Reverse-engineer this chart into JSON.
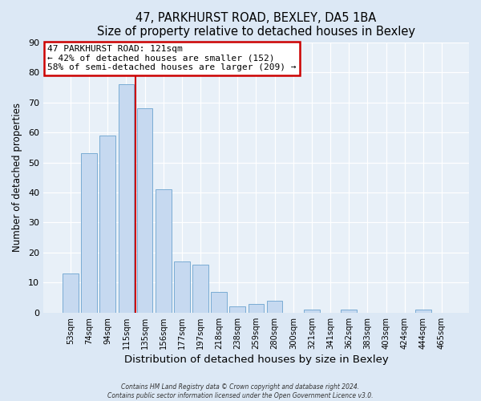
{
  "title": "47, PARKHURST ROAD, BEXLEY, DA5 1BA",
  "subtitle": "Size of property relative to detached houses in Bexley",
  "xlabel": "Distribution of detached houses by size in Bexley",
  "ylabel": "Number of detached properties",
  "bar_labels": [
    "53sqm",
    "74sqm",
    "94sqm",
    "115sqm",
    "135sqm",
    "156sqm",
    "177sqm",
    "197sqm",
    "218sqm",
    "238sqm",
    "259sqm",
    "280sqm",
    "300sqm",
    "321sqm",
    "341sqm",
    "362sqm",
    "383sqm",
    "403sqm",
    "424sqm",
    "444sqm",
    "465sqm"
  ],
  "bar_values": [
    13,
    53,
    59,
    76,
    68,
    41,
    17,
    16,
    7,
    2,
    3,
    4,
    0,
    1,
    0,
    1,
    0,
    0,
    0,
    1,
    0
  ],
  "bar_color": "#c6d9f0",
  "bar_edge_color": "#7aacd4",
  "vline_x": 3.5,
  "vline_color": "#cc0000",
  "annotation_title": "47 PARKHURST ROAD: 121sqm",
  "annotation_line1": "← 42% of detached houses are smaller (152)",
  "annotation_line2": "58% of semi-detached houses are larger (209) →",
  "annotation_box_color": "#cc0000",
  "ylim": [
    0,
    90
  ],
  "yticks": [
    0,
    10,
    20,
    30,
    40,
    50,
    60,
    70,
    80,
    90
  ],
  "footer_line1": "Contains HM Land Registry data © Crown copyright and database right 2024.",
  "footer_line2": "Contains public sector information licensed under the Open Government Licence v3.0.",
  "bg_color": "#dce8f5",
  "plot_bg_color": "#e8f0f8",
  "grid_color": "#ffffff"
}
